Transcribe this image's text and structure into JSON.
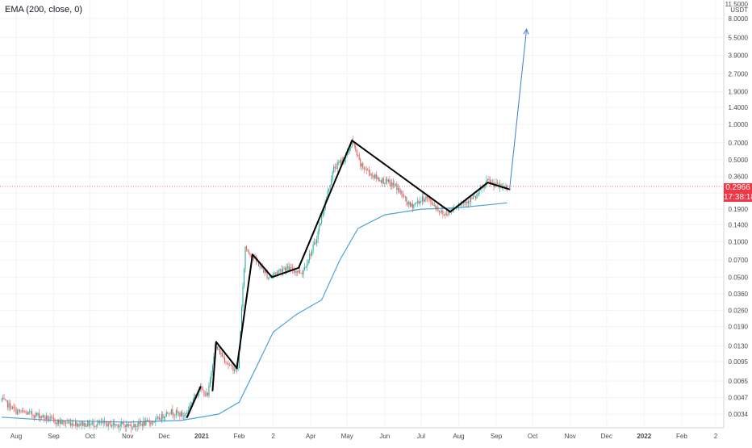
{
  "indicator": {
    "label": "EMA (200, close, 0)"
  },
  "price_axis": {
    "top_label": "11.5000",
    "currency": "USDT"
  },
  "last_price": {
    "value": "0.2966",
    "timer": "17:38:18"
  },
  "colors": {
    "up": "#26a69a",
    "down": "#ef5350",
    "ema": "#4aa3df",
    "trend": "#000000",
    "projection": "#3d7bd9",
    "price_line": "#f23645",
    "grid": "#f0f3fa",
    "axis_text": "#4a4a4a"
  },
  "chart_data": {
    "type": "line",
    "title": "",
    "xlabel": "",
    "ylabel": "USDT",
    "scale": "log",
    "grid": true,
    "legend": "top-left",
    "x_ticks": [
      "Aug",
      "Sep",
      "Oct",
      "Nov",
      "Dec",
      "2021",
      "Feb",
      "2",
      "Apr",
      "May",
      "Jun",
      "Jul",
      "Aug",
      "Sep",
      "Oct",
      "Nov",
      "Dec",
      "2022",
      "Feb",
      "2"
    ],
    "y_ticks": [
      8.0,
      5.5,
      3.9,
      2.7,
      1.9,
      1.4,
      1.0,
      0.7,
      0.5,
      0.36,
      0.26,
      0.19,
      0.14,
      0.1,
      0.07,
      0.05,
      0.036,
      0.026,
      0.019,
      0.013,
      0.0095,
      0.0065,
      0.0047,
      0.0034
    ],
    "y_tick_labels": [
      "8.0000",
      "5.5000",
      "3.9000",
      "2.7000",
      "1.9000",
      "1.4000",
      "1.0000",
      "0.7000",
      "0.5000",
      "0.3600",
      "0.2600",
      "0.1900",
      "0.1400",
      "0.1000",
      "0.0700",
      "0.0500",
      "0.0360",
      "0.0260",
      "0.0190",
      "0.0130",
      "0.0095",
      "0.0065",
      "0.0047",
      "0.0034"
    ],
    "price_series": [
      {
        "date": "2020-07-20",
        "close": 0.0045
      },
      {
        "date": "2020-08-01",
        "close": 0.0036
      },
      {
        "date": "2020-08-20",
        "close": 0.0033
      },
      {
        "date": "2020-09-05",
        "close": 0.0029
      },
      {
        "date": "2020-09-25",
        "close": 0.0028
      },
      {
        "date": "2020-10-15",
        "close": 0.0028
      },
      {
        "date": "2020-11-05",
        "close": 0.0027
      },
      {
        "date": "2020-11-25",
        "close": 0.003
      },
      {
        "date": "2020-12-05",
        "close": 0.0036
      },
      {
        "date": "2020-12-18",
        "close": 0.0033
      },
      {
        "date": "2020-12-30",
        "close": 0.0057
      },
      {
        "date": "2021-01-06",
        "close": 0.0048
      },
      {
        "date": "2021-01-12",
        "close": 0.013
      },
      {
        "date": "2021-01-25",
        "close": 0.0085
      },
      {
        "date": "2021-01-31",
        "close": 0.0082
      },
      {
        "date": "2021-02-04",
        "close": 0.04
      },
      {
        "date": "2021-02-06",
        "close": 0.09
      },
      {
        "date": "2021-02-12",
        "close": 0.075
      },
      {
        "date": "2021-02-25",
        "close": 0.05
      },
      {
        "date": "2021-03-10",
        "close": 0.06
      },
      {
        "date": "2021-03-25",
        "close": 0.055
      },
      {
        "date": "2021-04-05",
        "close": 0.1
      },
      {
        "date": "2021-04-13",
        "close": 0.22
      },
      {
        "date": "2021-04-20",
        "close": 0.42
      },
      {
        "date": "2021-05-01",
        "close": 0.55
      },
      {
        "date": "2021-05-05",
        "close": 0.73
      },
      {
        "date": "2021-05-12",
        "close": 0.45
      },
      {
        "date": "2021-05-25",
        "close": 0.35
      },
      {
        "date": "2021-06-10",
        "close": 0.3
      },
      {
        "date": "2021-06-22",
        "close": 0.2
      },
      {
        "date": "2021-07-05",
        "close": 0.24
      },
      {
        "date": "2021-07-20",
        "close": 0.17
      },
      {
        "date": "2021-08-01",
        "close": 0.21
      },
      {
        "date": "2021-08-15",
        "close": 0.24
      },
      {
        "date": "2021-08-25",
        "close": 0.33
      },
      {
        "date": "2021-09-05",
        "close": 0.29
      },
      {
        "date": "2021-09-10",
        "close": 0.2966
      }
    ],
    "ema_200": [
      {
        "date": "2020-07-20",
        "value": 0.0032
      },
      {
        "date": "2020-09-01",
        "value": 0.003
      },
      {
        "date": "2020-11-01",
        "value": 0.0029
      },
      {
        "date": "2020-12-15",
        "value": 0.003
      },
      {
        "date": "2021-01-15",
        "value": 0.0034
      },
      {
        "date": "2021-02-01",
        "value": 0.0043
      },
      {
        "date": "2021-02-15",
        "value": 0.0085
      },
      {
        "date": "2021-03-01",
        "value": 0.017
      },
      {
        "date": "2021-03-20",
        "value": 0.024
      },
      {
        "date": "2021-04-10",
        "value": 0.032
      },
      {
        "date": "2021-04-25",
        "value": 0.07
      },
      {
        "date": "2021-05-10",
        "value": 0.13
      },
      {
        "date": "2021-06-01",
        "value": 0.17
      },
      {
        "date": "2021-07-01",
        "value": 0.19
      },
      {
        "date": "2021-08-01",
        "value": 0.195
      },
      {
        "date": "2021-09-10",
        "value": 0.215
      }
    ],
    "trend_lines": [
      [
        {
          "date": "2020-12-20",
          "value": 0.0032
        },
        {
          "date": "2020-12-31",
          "value": 0.0058
        }
      ],
      [
        {
          "date": "2021-01-10",
          "value": 0.0054
        },
        {
          "date": "2021-01-13",
          "value": 0.014
        }
      ],
      [
        {
          "date": "2021-01-13",
          "value": 0.014
        },
        {
          "date": "2021-01-30",
          "value": 0.0084
        }
      ],
      [
        {
          "date": "2021-01-30",
          "value": 0.0084
        },
        {
          "date": "2021-02-12",
          "value": 0.078
        }
      ],
      [
        {
          "date": "2021-02-12",
          "value": 0.078
        },
        {
          "date": "2021-02-28",
          "value": 0.05
        }
      ],
      [
        {
          "date": "2021-02-28",
          "value": 0.05
        },
        {
          "date": "2021-03-22",
          "value": 0.06
        }
      ],
      [
        {
          "date": "2021-03-22",
          "value": 0.06
        },
        {
          "date": "2021-05-05",
          "value": 0.73
        }
      ],
      [
        {
          "date": "2021-05-05",
          "value": 0.73
        },
        {
          "date": "2021-07-25",
          "value": 0.18
        }
      ],
      [
        {
          "date": "2021-07-25",
          "value": 0.18
        },
        {
          "date": "2021-08-25",
          "value": 0.32
        }
      ],
      [
        {
          "date": "2021-08-25",
          "value": 0.32
        },
        {
          "date": "2021-09-12",
          "value": 0.28
        }
      ]
    ],
    "projection": [
      {
        "date": "2021-09-12",
        "value": 0.28
      },
      {
        "date": "2021-09-26",
        "value": 6.5
      }
    ],
    "last_price": 0.2966
  }
}
